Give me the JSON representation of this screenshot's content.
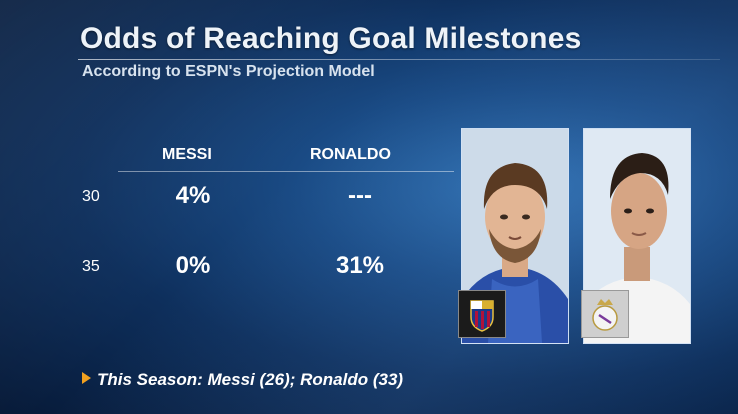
{
  "header": {
    "title": "Odds of Reaching Goal Milestones",
    "subtitle": "According to ESPN's Projection Model"
  },
  "table": {
    "columns": [
      "MESSI",
      "RONALDO"
    ],
    "rows": [
      {
        "label": "30",
        "values": [
          "4%",
          "---"
        ]
      },
      {
        "label": "35",
        "values": [
          "0%",
          "31%"
        ]
      }
    ]
  },
  "players": [
    {
      "name": "Messi",
      "club_icon": "fc-barcelona-crest-icon"
    },
    {
      "name": "Ronaldo",
      "club_icon": "real-madrid-crest-icon"
    }
  ],
  "footnote": {
    "text": "This Season: Messi (26); Ronaldo (33)",
    "bullet_color": "#f0a020"
  },
  "colors": {
    "background": "#0e2f5c",
    "text": "#ffffff",
    "barcelona_blue": "#1a3a8a",
    "barcelona_red": "#b0123a"
  }
}
